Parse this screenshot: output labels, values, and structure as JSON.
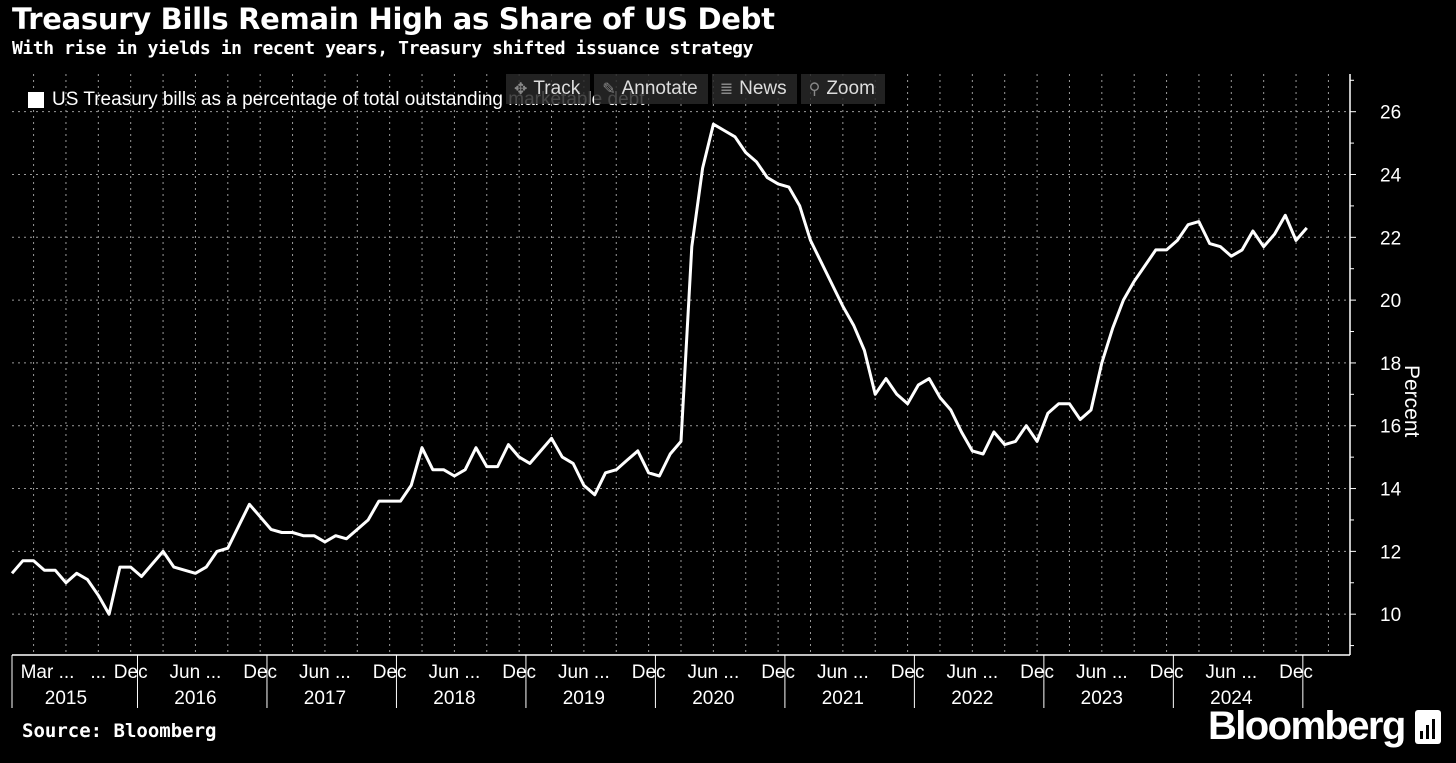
{
  "title": "Treasury Bills Remain High as Share of US Debt",
  "subtitle": "With rise in yields in recent years, Treasury shifted issuance strategy",
  "toolbar": {
    "track": "Track",
    "annotate": "Annotate",
    "news": "News",
    "zoom": "Zoom"
  },
  "source": "Source: Bloomberg",
  "brand": "Bloomberg",
  "colors": {
    "background": "#000000",
    "line": "#ffffff",
    "grid": "#9a9a9a"
  },
  "chart_data": {
    "type": "line",
    "title": "Treasury Bills Remain High as Share of US Debt",
    "subtitle": "With rise in yields in recent years, Treasury shifted issuance strategy",
    "ylabel": "Percent",
    "y_axis_side": "right",
    "ylim": [
      8.7,
      27.2
    ],
    "yticks": [
      10,
      12,
      14,
      16,
      18,
      20,
      22,
      24,
      26
    ],
    "xlim": [
      "2015-01",
      "2025-05"
    ],
    "x_tick_labels": [
      {
        "date": "2015-03",
        "label": "Mar ..."
      },
      {
        "date": "2015-09",
        "label": "..."
      },
      {
        "date": "2015-12",
        "label": "Dec"
      },
      {
        "date": "2016-06",
        "label": "Jun ..."
      },
      {
        "date": "2016-12",
        "label": "Dec"
      },
      {
        "date": "2017-06",
        "label": "Jun ..."
      },
      {
        "date": "2017-12",
        "label": "Dec"
      },
      {
        "date": "2018-06",
        "label": "Jun ..."
      },
      {
        "date": "2018-12",
        "label": "Dec"
      },
      {
        "date": "2019-06",
        "label": "Jun ..."
      },
      {
        "date": "2019-12",
        "label": "Dec"
      },
      {
        "date": "2020-06",
        "label": "Jun ..."
      },
      {
        "date": "2020-12",
        "label": "Dec"
      },
      {
        "date": "2021-06",
        "label": "Jun ..."
      },
      {
        "date": "2021-12",
        "label": "Dec"
      },
      {
        "date": "2022-06",
        "label": "Jun ..."
      },
      {
        "date": "2022-12",
        "label": "Dec"
      },
      {
        "date": "2023-06",
        "label": "Jun ..."
      },
      {
        "date": "2023-12",
        "label": "Dec"
      },
      {
        "date": "2024-06",
        "label": "Jun ..."
      },
      {
        "date": "2024-12",
        "label": "Dec"
      }
    ],
    "year_labels": [
      {
        "date": "2015-06",
        "label": "2015"
      },
      {
        "date": "2016-06",
        "label": "2016"
      },
      {
        "date": "2017-06",
        "label": "2017"
      },
      {
        "date": "2018-06",
        "label": "2018"
      },
      {
        "date": "2019-06",
        "label": "2019"
      },
      {
        "date": "2020-06",
        "label": "2020"
      },
      {
        "date": "2021-06",
        "label": "2021"
      },
      {
        "date": "2022-06",
        "label": "2022"
      },
      {
        "date": "2023-06",
        "label": "2023"
      },
      {
        "date": "2024-06",
        "label": "2024"
      }
    ],
    "grid": true,
    "legend_position": "top-left",
    "series": [
      {
        "name": "US Treasury bills as a percentage of total outstanding marketable debt",
        "color": "#ffffff",
        "x": [
          "2015-01",
          "2015-02",
          "2015-03",
          "2015-04",
          "2015-05",
          "2015-06",
          "2015-07",
          "2015-08",
          "2015-09",
          "2015-10",
          "2015-11",
          "2015-12",
          "2016-01",
          "2016-02",
          "2016-03",
          "2016-04",
          "2016-05",
          "2016-06",
          "2016-07",
          "2016-08",
          "2016-09",
          "2016-10",
          "2016-11",
          "2016-12",
          "2017-01",
          "2017-02",
          "2017-03",
          "2017-04",
          "2017-05",
          "2017-06",
          "2017-07",
          "2017-08",
          "2017-09",
          "2017-10",
          "2017-11",
          "2017-12",
          "2018-01",
          "2018-02",
          "2018-03",
          "2018-04",
          "2018-05",
          "2018-06",
          "2018-07",
          "2018-08",
          "2018-09",
          "2018-10",
          "2018-11",
          "2018-12",
          "2019-01",
          "2019-02",
          "2019-03",
          "2019-04",
          "2019-05",
          "2019-06",
          "2019-07",
          "2019-08",
          "2019-09",
          "2019-10",
          "2019-11",
          "2019-12",
          "2020-01",
          "2020-02",
          "2020-03",
          "2020-04",
          "2020-05",
          "2020-06",
          "2020-07",
          "2020-08",
          "2020-09",
          "2020-10",
          "2020-11",
          "2020-12",
          "2021-01",
          "2021-02",
          "2021-03",
          "2021-04",
          "2021-05",
          "2021-06",
          "2021-07",
          "2021-08",
          "2021-09",
          "2021-10",
          "2021-11",
          "2021-12",
          "2022-01",
          "2022-02",
          "2022-03",
          "2022-04",
          "2022-05",
          "2022-06",
          "2022-07",
          "2022-08",
          "2022-09",
          "2022-10",
          "2022-11",
          "2022-12",
          "2023-01",
          "2023-02",
          "2023-03",
          "2023-04",
          "2023-05",
          "2023-06",
          "2023-07",
          "2023-08",
          "2023-09",
          "2023-10",
          "2023-11",
          "2023-12",
          "2024-01",
          "2024-02",
          "2024-03",
          "2024-04",
          "2024-05",
          "2024-06",
          "2024-07",
          "2024-08",
          "2024-09",
          "2024-10",
          "2024-11",
          "2024-12",
          "2025-01"
        ],
        "values": [
          11.3,
          11.7,
          11.7,
          11.4,
          11.4,
          11.0,
          11.3,
          11.1,
          10.6,
          10.0,
          11.5,
          11.5,
          11.2,
          11.6,
          12.0,
          11.5,
          11.4,
          11.3,
          11.5,
          12.0,
          12.1,
          12.8,
          13.5,
          13.1,
          12.7,
          12.6,
          12.6,
          12.5,
          12.5,
          12.3,
          12.5,
          12.4,
          12.7,
          13.0,
          13.6,
          13.6,
          13.6,
          14.1,
          15.3,
          14.6,
          14.6,
          14.4,
          14.6,
          15.3,
          14.7,
          14.7,
          15.4,
          15.0,
          14.8,
          15.2,
          15.6,
          15.0,
          14.8,
          14.1,
          13.8,
          14.5,
          14.6,
          14.9,
          15.2,
          14.5,
          14.4,
          15.1,
          15.5,
          21.7,
          24.2,
          25.6,
          25.4,
          25.2,
          24.7,
          24.4,
          23.9,
          23.7,
          23.6,
          23.0,
          21.9,
          21.2,
          20.5,
          19.8,
          19.2,
          18.4,
          17.0,
          17.5,
          17.0,
          16.7,
          17.3,
          17.5,
          16.9,
          16.5,
          15.8,
          15.2,
          15.1,
          15.8,
          15.4,
          15.5,
          16.0,
          15.5,
          16.4,
          16.7,
          16.7,
          16.2,
          16.5,
          18.0,
          19.1,
          20.0,
          20.6,
          21.1,
          21.6,
          21.6,
          21.9,
          22.4,
          22.5,
          21.8,
          21.7,
          21.4,
          21.6,
          22.2,
          21.7,
          22.1,
          22.7,
          21.9,
          22.3
        ]
      }
    ]
  }
}
